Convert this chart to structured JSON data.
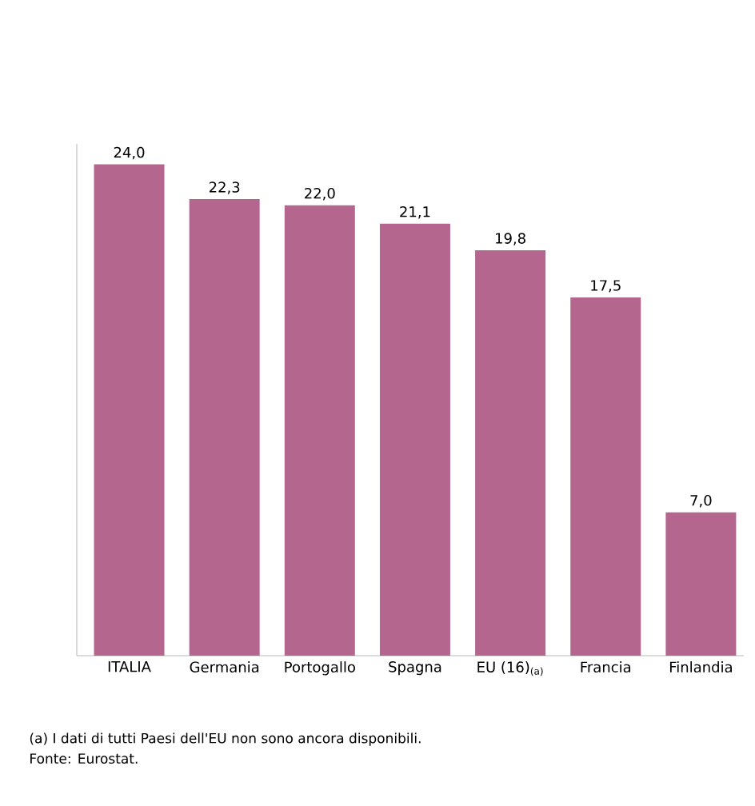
{
  "chart_data": {
    "type": "bar",
    "categories": [
      "ITALIA",
      "Germania",
      "Portogallo",
      "Spagna",
      "EU (16)$_{(a)}$",
      "Francia",
      "Finlandia"
    ],
    "values": [
      24.0,
      22.3,
      22.0,
      21.1,
      19.8,
      17.5,
      7.0
    ],
    "value_labels": [
      "24,0",
      "22,3",
      "22,0",
      "21,1",
      "19,8",
      "17,5",
      "7,0"
    ],
    "color": "#b5668f",
    "ylim": [
      0,
      25
    ],
    "tick_labels": "x",
    "grid": false,
    "annotations": [
      "(a) I dati di tutti Paesi dell'EU non sono ancora disponibili.",
      "Fonte: Eurostat."
    ]
  }
}
